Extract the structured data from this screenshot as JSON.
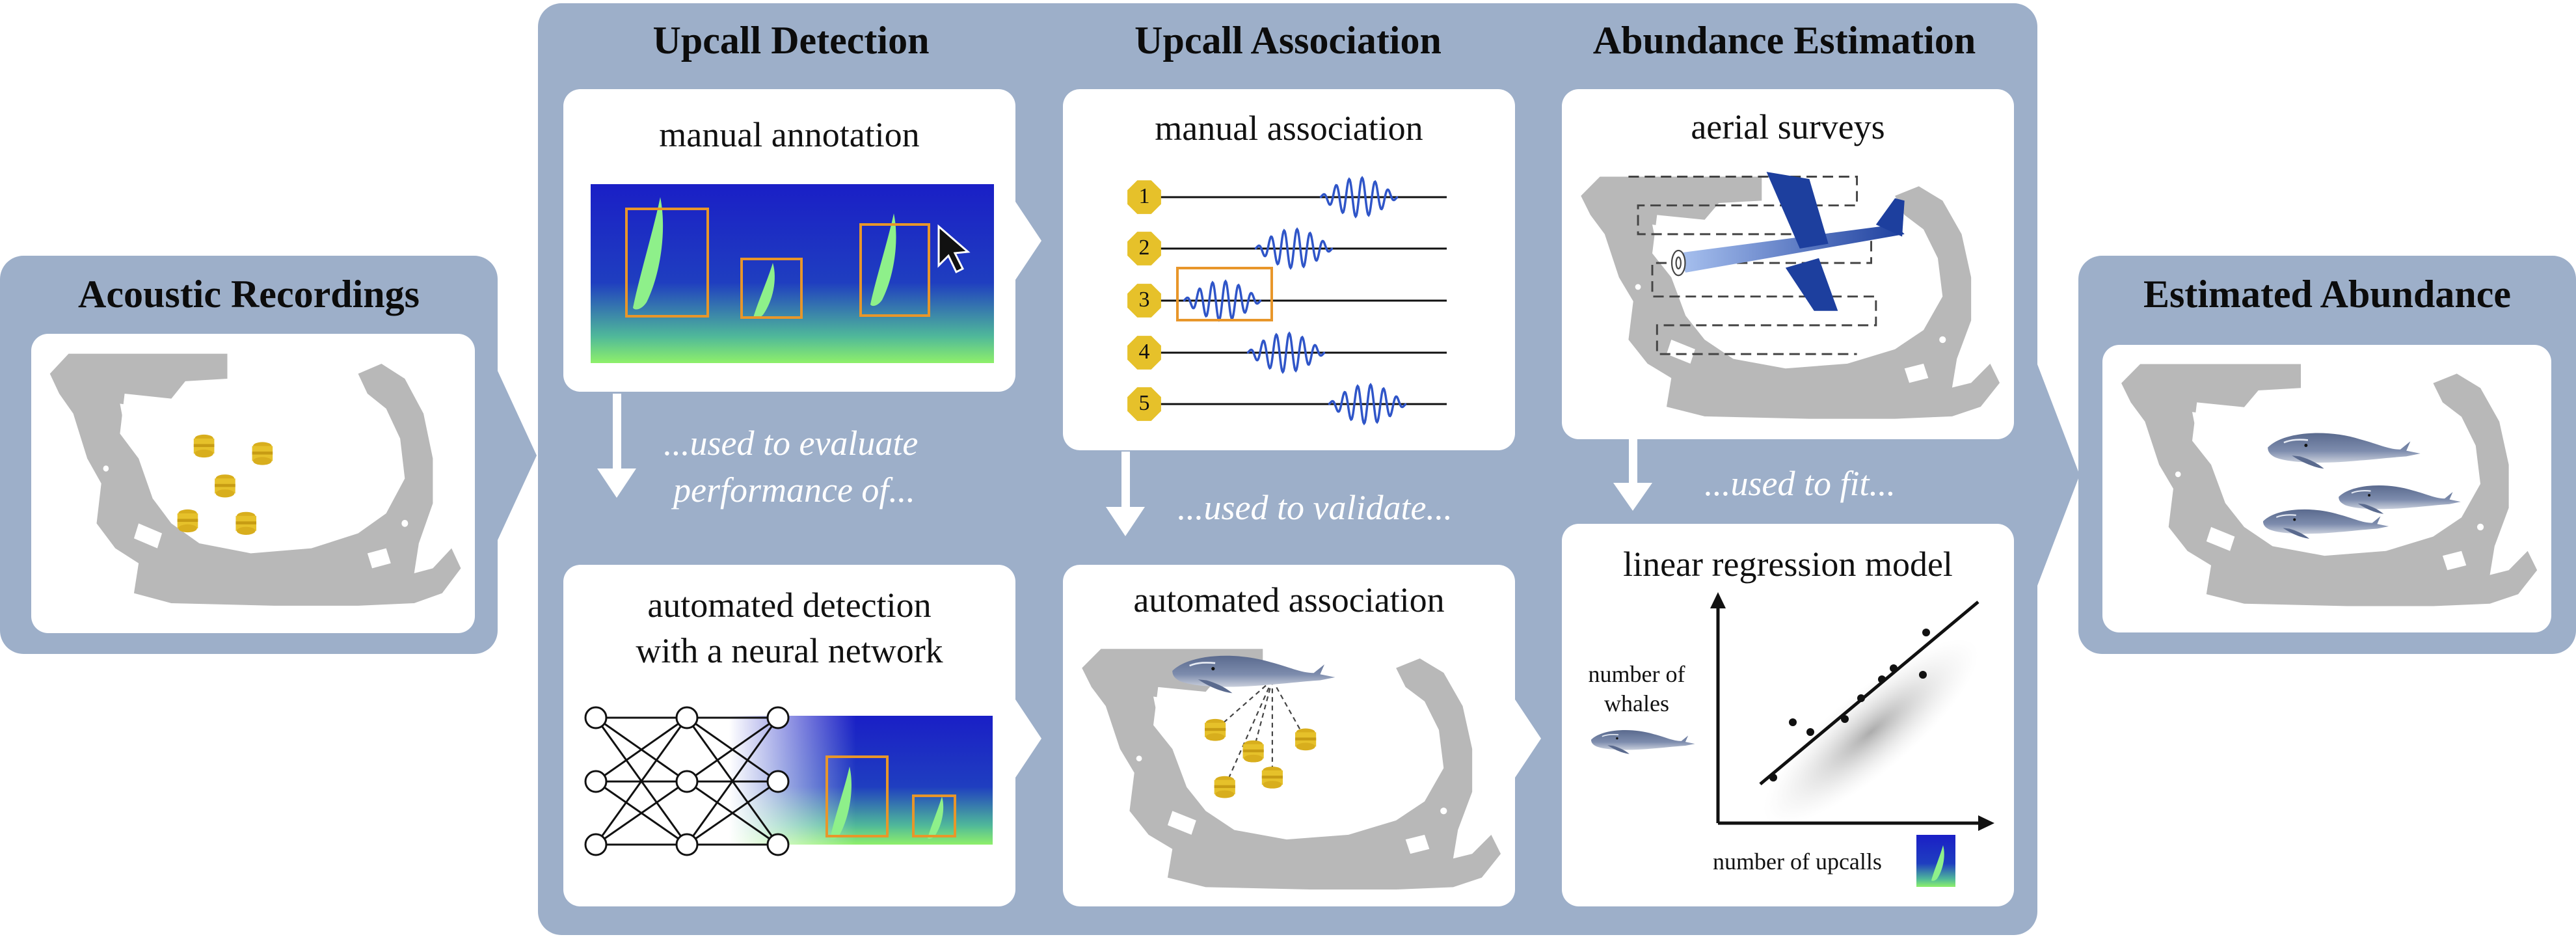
{
  "left": {
    "title": "Acoustic Recordings"
  },
  "right": {
    "title": "Estimated Abundance"
  },
  "columns": {
    "detection": {
      "header": "Upcall Detection",
      "manual_title": "manual annotation",
      "auto_title_1": "automated detection",
      "auto_title_2": "with a neural network"
    },
    "association": {
      "header": "Upcall Association",
      "manual_title": "manual association",
      "auto_title": "automated association"
    },
    "abundance": {
      "header": "Abundance Estimation",
      "manual_title": "aerial surveys",
      "auto_title": "linear regression model"
    }
  },
  "notes": {
    "evaluate_1": "...used to evaluate",
    "evaluate_2": "performance of...",
    "validate": "...used to validate...",
    "fit": "...used to fit..."
  },
  "sensors": [
    "1",
    "2",
    "3",
    "4",
    "5"
  ],
  "regression": {
    "ylabel_1": "number of",
    "ylabel_2": "whales",
    "xlabel": "number of upcalls"
  },
  "colors": {
    "panel": "#9dafc9",
    "highlight": "#e8962a",
    "sensor": "#e6c12a",
    "wave": "#2f55c8",
    "land": "#b8b8b8"
  }
}
